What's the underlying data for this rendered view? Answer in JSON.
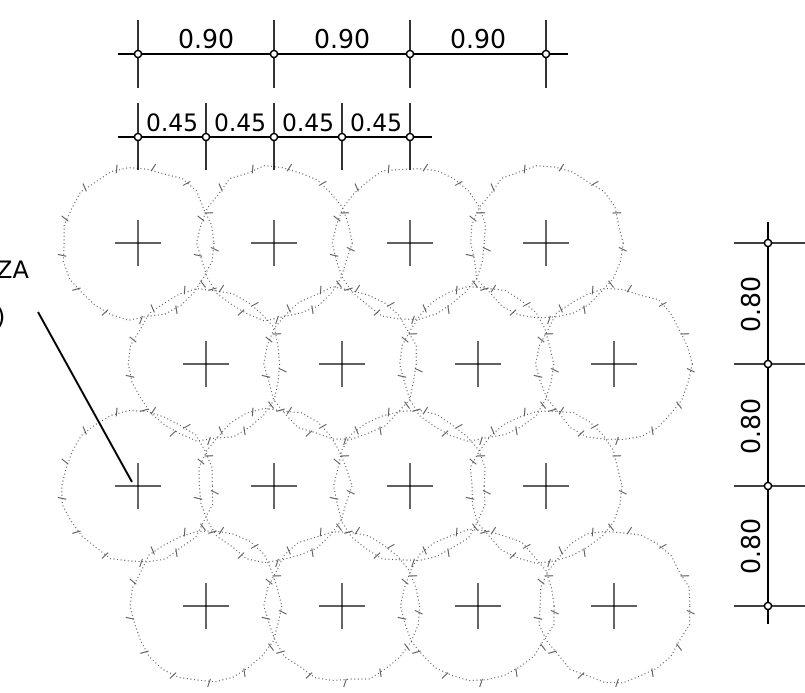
{
  "dimensions": {
    "top_row": [
      "0.90",
      "0.90",
      "0.90"
    ],
    "second_row": [
      "0.45",
      "0.45",
      "0.45",
      "0.45"
    ],
    "vertical": [
      "0.80",
      "0.80",
      "0.80"
    ]
  },
  "label": {
    "line1": "ZA",
    "line2": ")"
  },
  "colors": {
    "line": "#000000",
    "plant_outline": "#555555",
    "background": "#ffffff"
  }
}
